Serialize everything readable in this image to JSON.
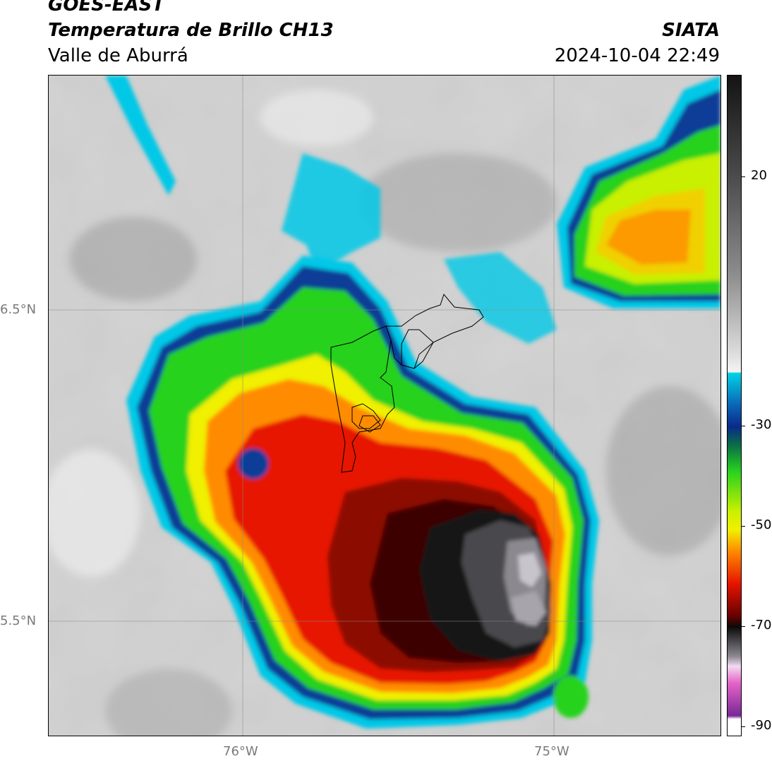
{
  "header": {
    "satellite": "GOES-EAST",
    "product": "Temperatura de Brillo CH13",
    "region": "Valle de Aburrá",
    "agency": "SIATA",
    "timestamp": "2024-10-04 22:49"
  },
  "axes": {
    "lat_labels": [
      "6.5°N",
      "5.5°N"
    ],
    "lon_labels": [
      "76°W",
      "75°W"
    ]
  },
  "colorbar": {
    "ticks": [
      "20",
      "-30",
      "-50",
      "-70",
      "-90"
    ],
    "colors": {
      "background_gray": "#c8c8c8",
      "cyan": "#00c8e6",
      "blue": "#0a3c96",
      "green": "#28d21e",
      "yellow": "#f0f000",
      "orange": "#ff8c00",
      "red": "#e61400",
      "dark_red": "#500000",
      "black": "#0a0a0a",
      "gray_core": "#8c8890",
      "magenta": "#c832b4",
      "purple": "#641478"
    }
  }
}
